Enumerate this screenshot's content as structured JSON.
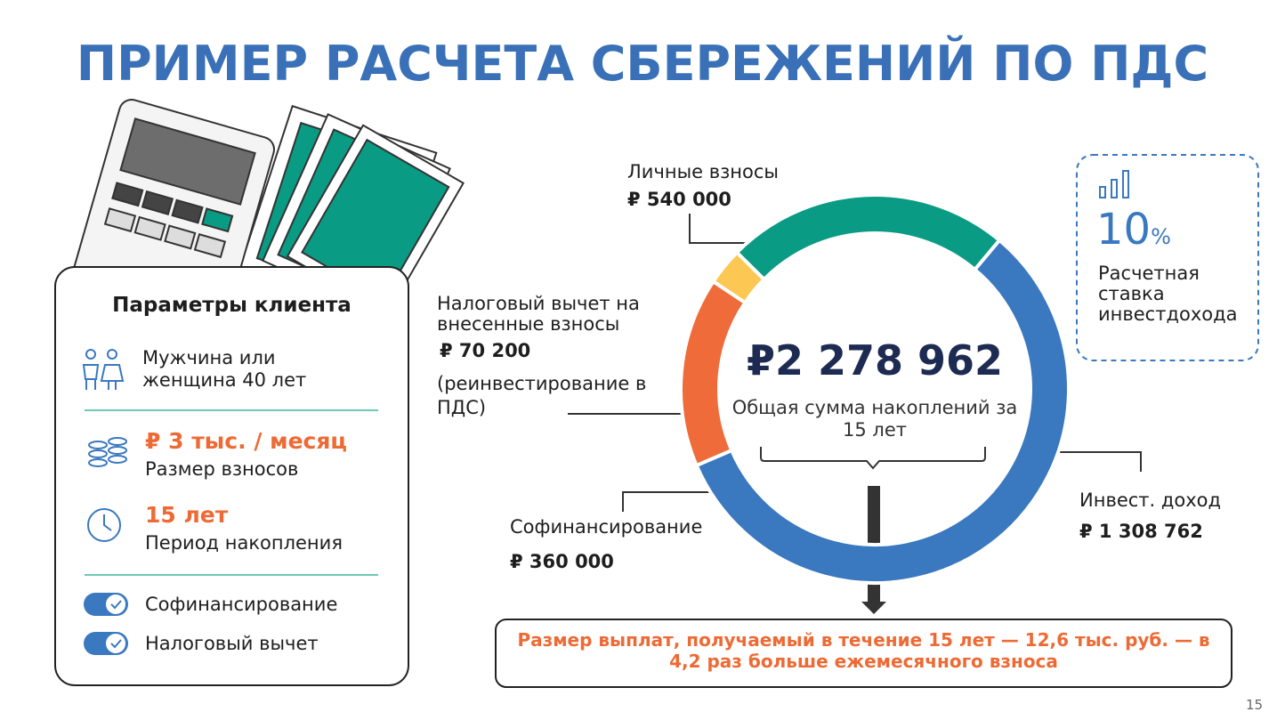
{
  "title": "ПРИМЕР РАСЧЕТА СБЕРЕЖЕНИЙ ПО ПДС",
  "client_params": {
    "title": "Параметры клиента",
    "person": "Мужчина или женщина 40 лет",
    "contribution": {
      "value": "₽ 3 тыс. / месяц",
      "label": "Размер взносов"
    },
    "period": {
      "value": "15 лет",
      "label": "Период накопления"
    },
    "toggles": [
      "Софинансирование",
      "Налоговый вычет"
    ]
  },
  "rate_box": {
    "value": "10",
    "unit": "%",
    "label": "Расчетная ставка инвестдохода"
  },
  "chart_data": {
    "type": "donut",
    "categories": [
      "Личные взносы",
      "Налоговый вычет на внесенные взносы",
      "Софинансирование",
      "Инвест. доход"
    ],
    "values": [
      540000,
      70200,
      360000,
      1308762
    ],
    "value_labels": [
      "₽ 540 000",
      "₽ 70 200",
      "₽ 360 000",
      "₽ 1 308 762"
    ],
    "colors": [
      "#0a9b84",
      "#fdc753",
      "#ef6b3a",
      "#3a78bf"
    ],
    "annotation": "(реинвестирование в ПДС)",
    "total": {
      "value": 2278962,
      "label": "₽2 278 962"
    },
    "total_caption": "Общая сумма накоплений за 15 лет"
  },
  "payout_note": "Размер выплат, получаемый в течение 15 лет — 12,6 тыс. руб. — в 4,2 раз больше ежемесячного взноса",
  "page_number": "15"
}
